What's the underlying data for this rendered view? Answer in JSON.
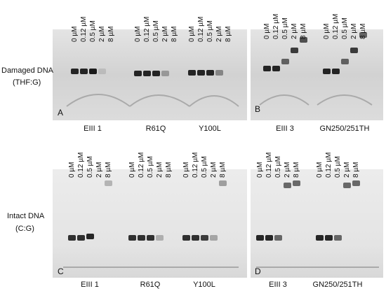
{
  "concentrations": [
    "0 µM",
    "0.12 µM",
    "0.5 µM",
    "2 µM",
    "8 µM"
  ],
  "row_labels": [
    {
      "line1": "Damaged DNA",
      "line2": "(THF:G)"
    },
    {
      "line1": "Intact DNA",
      "line2": "(C:G)"
    }
  ],
  "panels": [
    {
      "letter": "A",
      "samples": [
        "EIII 1",
        "R61Q",
        "Y100L"
      ]
    },
    {
      "letter": "B",
      "samples": [
        "EIII 3",
        "GN250/251TH"
      ]
    },
    {
      "letter": "C",
      "samples": [
        "EIII 1",
        "R61Q",
        "Y100L"
      ]
    },
    {
      "letter": "D",
      "samples": [
        "EIII 3",
        "GN250/251TH"
      ]
    }
  ]
}
